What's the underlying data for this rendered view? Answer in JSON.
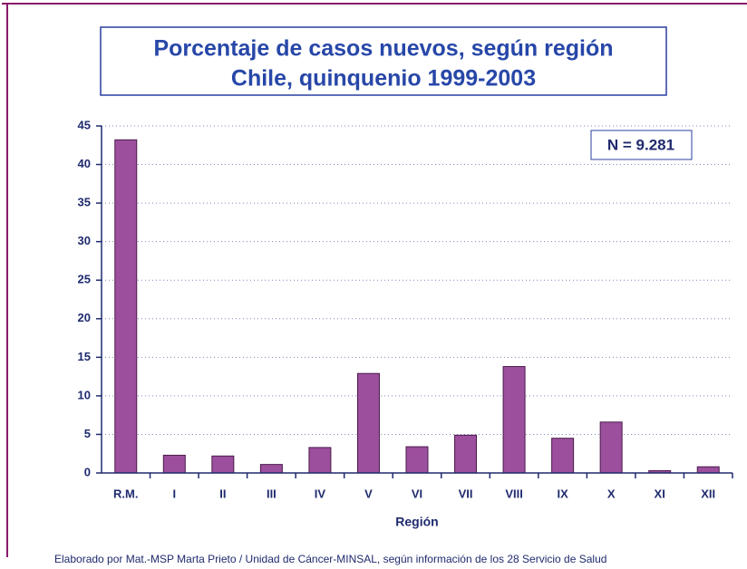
{
  "chart_data": {
    "type": "bar",
    "title": "Porcentaje de casos nuevos, según región",
    "subtitle": "Chile, quinquenio 1999-2003",
    "annotation": "N = 9.281",
    "x_label": "Región",
    "source": "Elaborado por Mat.-MSP Marta Prieto / Unidad de Cáncer-MINSAL, según información de los 28 Servicio de Salud",
    "categories": [
      "R.M.",
      "I",
      "II",
      "III",
      "IV",
      "V",
      "VI",
      "VII",
      "VIII",
      "IX",
      "X",
      "XI",
      "XII"
    ],
    "values": [
      43.2,
      2.3,
      2.2,
      1.1,
      3.3,
      12.9,
      3.4,
      4.9,
      13.8,
      4.5,
      6.6,
      0.3,
      0.8
    ],
    "color": "#9c4f9c",
    "ylim": [
      0,
      45
    ],
    "yticks": [
      0,
      5,
      10,
      15,
      20,
      25,
      30,
      35,
      40,
      45
    ],
    "grid": true
  }
}
